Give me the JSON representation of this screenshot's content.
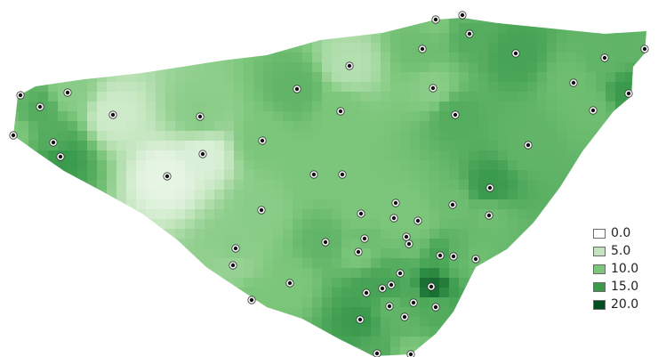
{
  "legend": {
    "items": [
      {
        "label": "0.0",
        "color": "#ffffff"
      },
      {
        "label": "5.0",
        "color": "#c2e5bd"
      },
      {
        "label": "10.0",
        "color": "#7bc67a"
      },
      {
        "label": "15.0",
        "color": "#3a9a4c"
      },
      {
        "label": "20.0",
        "color": "#004d1f"
      }
    ]
  },
  "colors": {
    "ramp_low": "#ffffff",
    "ramp_high": "#00441b",
    "point_fill": "#111111",
    "point_ring": "#ffffff"
  }
}
